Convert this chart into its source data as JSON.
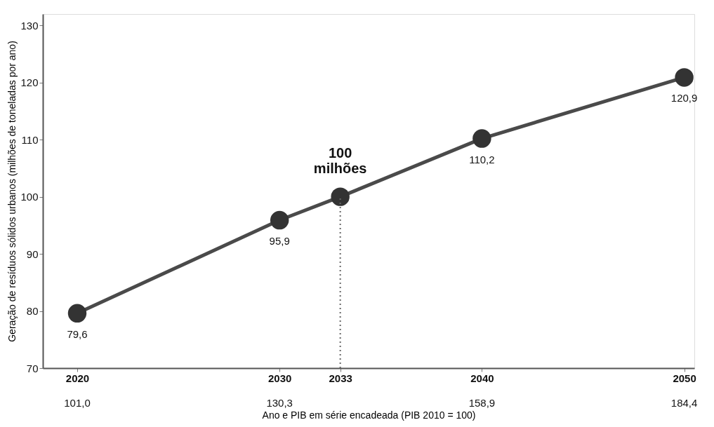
{
  "chart_data": {
    "type": "line",
    "xlabel": "Ano e PIB em série encadeada (PIB 2010 = 100)",
    "ylabel": "Geração de resíduos sólidos urbanos (milhões de toneladas por ano)",
    "x": [
      2020,
      2030,
      2033,
      2040,
      2050
    ],
    "series": [
      {
        "color": "#4a4a4a",
        "values": [
          79.6,
          95.9,
          100,
          110.2,
          120.9
        ],
        "value_labels": [
          "79,6",
          "95,9",
          null,
          "110,2",
          "120,9"
        ]
      }
    ],
    "xlim": [
      2018.3,
      2050.5
    ],
    "ylim": [
      70,
      132
    ],
    "xticks": [
      2020,
      2030,
      2033,
      2040,
      2050
    ],
    "yticks": [
      70,
      80,
      90,
      100,
      110,
      120,
      130
    ],
    "annotations": [
      {
        "text": "100\nmilhões",
        "x": 2033,
        "y": 100
      },
      "101,0",
      "130,3",
      "158,9",
      "184,4"
    ],
    "ref_lines": [
      {
        "axis": "x",
        "value": 2033,
        "line_style": "dotted",
        "color": "#666666"
      }
    ],
    "marker": "circle",
    "line_style": "solid",
    "grid": false
  }
}
